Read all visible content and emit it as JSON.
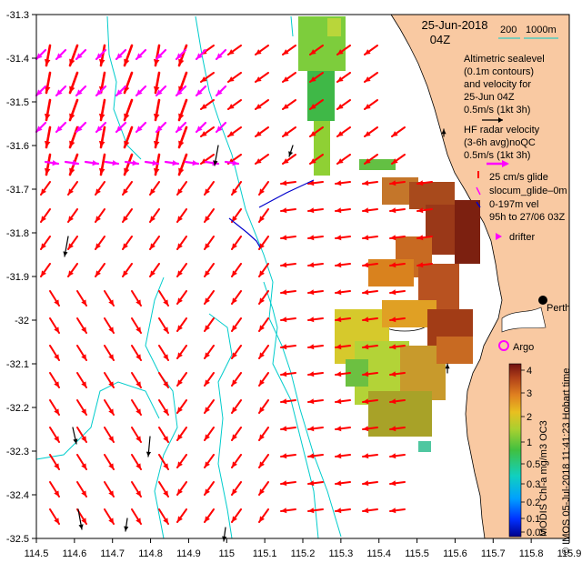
{
  "header": {
    "date": "25-Jun-2018",
    "time": "04Z",
    "scale_label": "200",
    "scale_label2": "1000m"
  },
  "legend": {
    "altimetric": [
      "Altimetric sealevel",
      "(0.1m contours)",
      "and velocity for",
      "25-Jun 04Z",
      "0.5m/s (1kt 3h)"
    ],
    "hf_radar": [
      "HF radar velocity",
      "(3-6h avg)noQC",
      "0.5m/s (1kt 3h)"
    ],
    "glider": [
      "25 cm/s glide",
      "slocum_glide–0m",
      "0-197m vel",
      "95h to 27/06 03Z"
    ],
    "drifter": "drifter",
    "city": "Perth",
    "argo": "Argo"
  },
  "colorbar": {
    "ticks": [
      "4",
      "3",
      "2",
      "1",
      "0.5",
      "0.3",
      "0.2",
      "0.1",
      "0.05"
    ],
    "title": "MODIS Chl-a mg/m3 OC3",
    "credit": "© IMOS 05-Jul-2018 11:41:23 Hobart time"
  },
  "axes": {
    "x_ticks": [
      "114.5",
      "114.6",
      "114.7",
      "114.8",
      "114.9",
      "115",
      "115.1",
      "115.2",
      "115.3",
      "115.4",
      "115.5",
      "115.6",
      "115.7",
      "115.8",
      "115.9"
    ],
    "y_ticks": [
      "-31.3",
      "-31.4",
      "-31.5",
      "-31.6",
      "-31.7",
      "-31.8",
      "-31.9",
      "-32",
      "-32.1",
      "-32.2",
      "-32.3",
      "-32.4",
      "-32.5"
    ]
  },
  "colors": {
    "land": "#f9c9a2",
    "alt_vectors": "#ff0000",
    "hf_vectors": "#ff00ff",
    "glider": "#0000cc",
    "contours": "#00cccc",
    "black_vectors": "#000000"
  }
}
